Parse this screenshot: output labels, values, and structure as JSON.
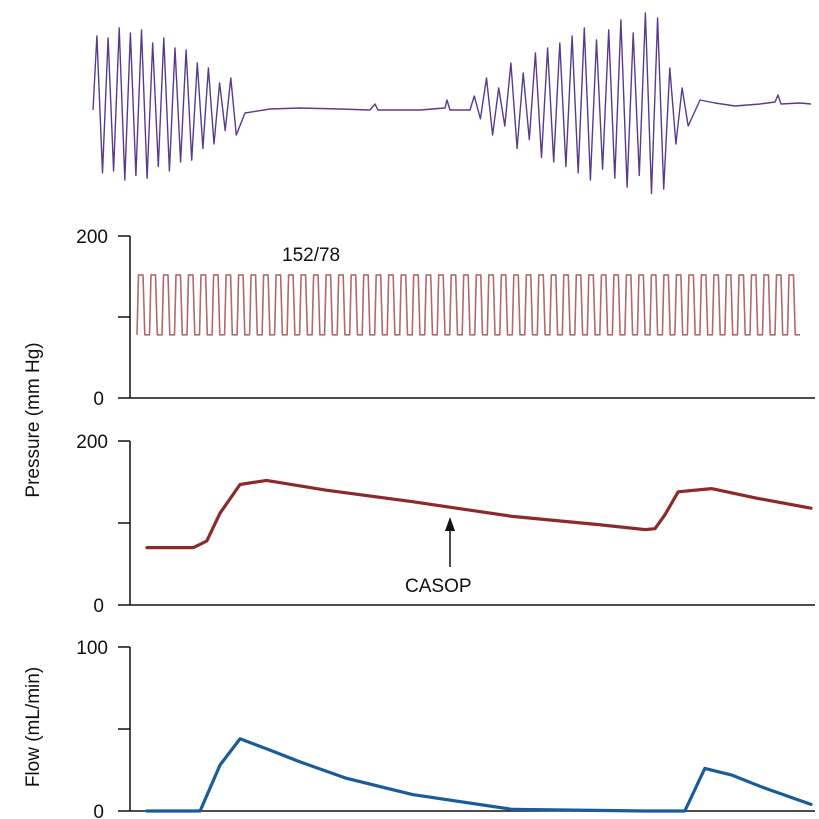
{
  "chart_data": [
    {
      "type": "line",
      "panel": "ecg",
      "title": "",
      "xlabel": "",
      "ylabel": "",
      "colors": {
        "trace": "#5b3a8c"
      },
      "segments": [
        "fibrillation-burst",
        "flat-line",
        "fibrillation-burst"
      ]
    },
    {
      "type": "line",
      "panel": "arterial-pressure",
      "ylabel": "Pressure (mm Hg)",
      "ylim": [
        0,
        200
      ],
      "yticks": [
        "200",
        "0"
      ],
      "annotation": "152/78",
      "systolic": 152,
      "diastolic": 78,
      "beats": 53,
      "colors": {
        "trace": "#b06a6a"
      }
    },
    {
      "type": "line",
      "panel": "coronary-pressure",
      "ylabel": "",
      "ylim": [
        0,
        200
      ],
      "yticks": [
        "200",
        "0"
      ],
      "annotation": "CASOP",
      "series": [
        {
          "x": [
            0,
            7,
            9,
            11,
            14,
            18,
            27,
            40,
            55,
            68,
            75,
            76.5,
            78,
            80,
            85,
            92,
            100
          ],
          "values": [
            70,
            70,
            78,
            112,
            147,
            152,
            140,
            126,
            108,
            98,
            92,
            93,
            110,
            138,
            142,
            130,
            118
          ]
        }
      ],
      "colors": {
        "trace": "#8c2a2a"
      }
    },
    {
      "type": "line",
      "panel": "flow",
      "ylabel": "Flow (mL/min)",
      "ylim": [
        0,
        100
      ],
      "yticks": [
        "100",
        "0"
      ],
      "series": [
        {
          "x": [
            0,
            8,
            11,
            14,
            18,
            23,
            30,
            40,
            55,
            75,
            81,
            84,
            88,
            93,
            100
          ],
          "values": [
            0,
            0,
            28,
            44,
            38,
            30,
            20,
            10,
            1,
            0,
            0,
            26,
            22,
            14,
            4
          ]
        }
      ],
      "colors": {
        "trace": "#1a5c9a"
      }
    }
  ]
}
